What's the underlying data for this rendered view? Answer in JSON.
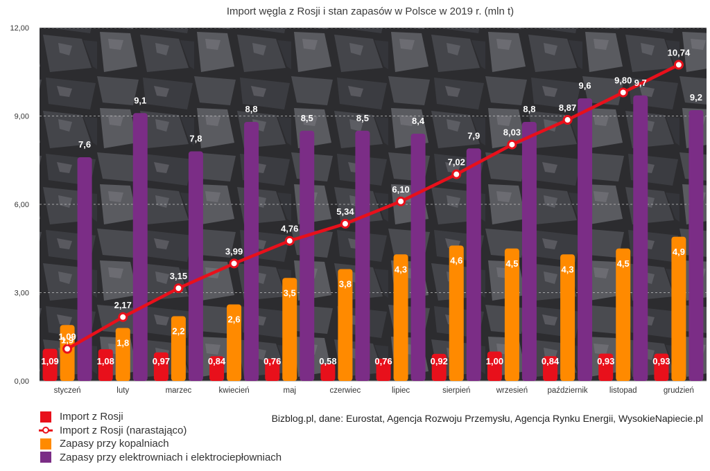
{
  "chart_data": {
    "type": "bar",
    "title": "Import węgla z Rosji i stan zapasów w Polsce w 2019 r. (mln t)",
    "categories": [
      "styczeń",
      "luty",
      "marzec",
      "kwiecień",
      "maj",
      "czerwiec",
      "lipiec",
      "sierpień",
      "wrzesień",
      "październik",
      "listopad",
      "grudzień"
    ],
    "ylim": [
      0,
      12
    ],
    "yticks": [
      "0,00",
      "3,00",
      "6,00",
      "9,00",
      "12,00"
    ],
    "series": [
      {
        "name": "Import z Rosji",
        "type": "bar",
        "color": "#e8101b",
        "values": [
          1.09,
          1.08,
          0.97,
          0.84,
          0.76,
          0.58,
          0.76,
          0.92,
          1.0,
          0.84,
          0.93,
          0.93
        ],
        "labels": [
          "1,09",
          "1,08",
          "0,97",
          "0,84",
          "0,76",
          "0,58",
          "0,76",
          "0,92",
          "1,00",
          "0,84",
          "0,93",
          "0,93"
        ]
      },
      {
        "name": "Zapasy przy kopalniach",
        "type": "bar",
        "color": "#ff8a00",
        "values": [
          1.9,
          1.8,
          2.2,
          2.6,
          3.5,
          3.8,
          4.3,
          4.6,
          4.5,
          4.3,
          4.5,
          4.9
        ],
        "labels": [
          "1,9",
          "1,8",
          "2,2",
          "2,6",
          "3,5",
          "3,8",
          "4,3",
          "4,6",
          "4,5",
          "4,3",
          "4,5",
          "4,9"
        ]
      },
      {
        "name": "Zapasy przy elektrowniach i elektrociepłowniach",
        "type": "bar",
        "color": "#7b2d86",
        "values": [
          7.6,
          9.1,
          7.8,
          8.8,
          8.5,
          8.5,
          8.4,
          7.9,
          8.8,
          9.6,
          9.7,
          9.2
        ],
        "labels": [
          "7,6",
          "9,1",
          "7,8",
          "8,8",
          "8,5",
          "8,5",
          "8,4",
          "7,9",
          "8,8",
          "9,6",
          "9,7",
          "9,2"
        ]
      },
      {
        "name": "Import z Rosji (narastająco)",
        "type": "line",
        "color": "#e8101b",
        "values": [
          1.09,
          2.17,
          3.15,
          3.99,
          4.76,
          5.34,
          6.1,
          7.02,
          8.03,
          8.87,
          9.8,
          10.74
        ],
        "labels": [
          "1,09",
          "2,17",
          "3,15",
          "3,99",
          "4,76",
          "5,34",
          "6,10",
          "7,02",
          "8,03",
          "8,87",
          "9,80",
          "10,74"
        ]
      }
    ],
    "legend": {
      "position": "bottom-left",
      "items": [
        {
          "name": "Import z Rosji",
          "kind": "bar",
          "color": "#e8101b"
        },
        {
          "name": "Import z Rosji (narastająco)",
          "kind": "line",
          "color": "#e8101b"
        },
        {
          "name": "Zapasy przy kopalniach",
          "kind": "bar",
          "color": "#ff8a00"
        },
        {
          "name": "Zapasy przy elektrowniach i elektrociepłowniach",
          "kind": "bar",
          "color": "#7b2d86"
        }
      ]
    },
    "source": "Bizblog.pl, dane: Eurostat, Agencja Rozwoju Przemysłu, Agencja Rynku Energii, WysokieNapiecie.pl",
    "background": "coal photo"
  }
}
